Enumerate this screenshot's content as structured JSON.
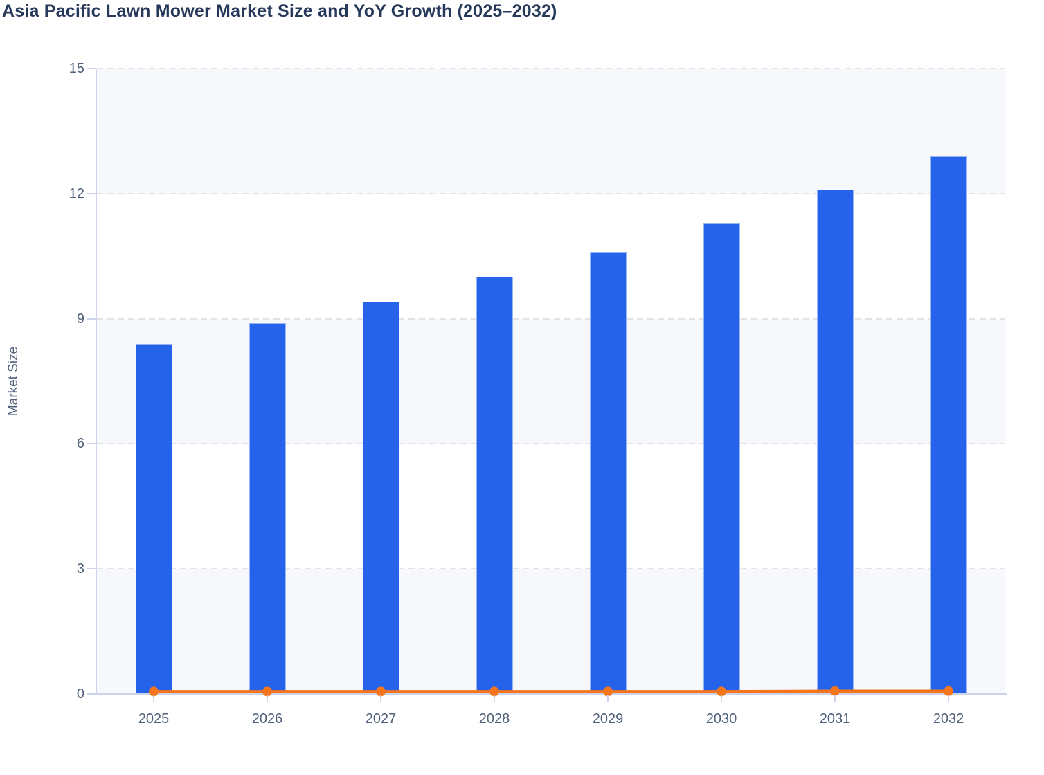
{
  "page": {
    "background": "#ffffff"
  },
  "chart": {
    "title": "Asia Pacific Lawn Mower Market Size and YoY Growth (2025–2032)",
    "title_color": "#27395b"
  },
  "chart_data": {
    "type": "bar",
    "title": "Asia Pacific Lawn Mower Market Size and YoY Growth (2025–2032)",
    "categories": [
      "2025",
      "2026",
      "2027",
      "2028",
      "2029",
      "2030",
      "2031",
      "2032"
    ],
    "series": [
      {
        "name": "Market Size",
        "type": "bar",
        "color": "#2563eb",
        "values": [
          8.4,
          8.9,
          9.4,
          10.0,
          10.6,
          11.3,
          12.1,
          12.9
        ]
      },
      {
        "name": "YoY Growth",
        "type": "line",
        "color": "#f5751d",
        "values": [
          0.06,
          0.06,
          0.06,
          0.06,
          0.06,
          0.06,
          0.07,
          0.07
        ]
      }
    ],
    "xlabel": "",
    "ylabel": "Market Size",
    "ylim": [
      0,
      15
    ],
    "yticks": [
      0,
      3,
      6,
      9,
      12,
      15
    ],
    "grid": "horizontal-dashed",
    "legend": "none",
    "plot_bands": [
      [
        0,
        3
      ],
      [
        6,
        9
      ],
      [
        12,
        15
      ]
    ],
    "colors": {
      "band": "#f7f8fb",
      "gridline": "#e1e3e8",
      "axis": "#ccd3ea",
      "tick_label": "#50607c",
      "bar": "#2563eb",
      "line": "#f5751d"
    }
  }
}
